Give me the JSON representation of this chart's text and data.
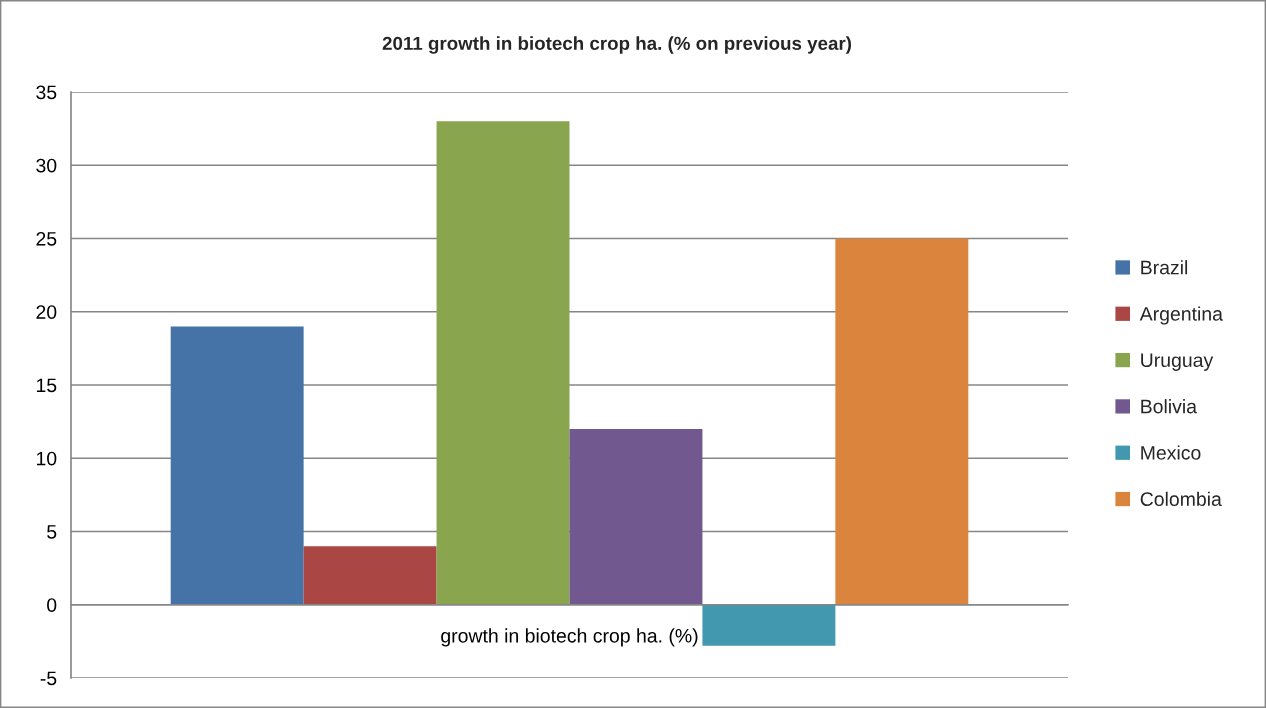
{
  "chart_data": {
    "type": "bar",
    "title": "2011 growth in biotech crop ha. (% on previous year)",
    "categories": [
      "growth in biotech crop ha. (%)"
    ],
    "series": [
      {
        "name": "Brazil",
        "color": "#4572a7",
        "values": [
          19
        ]
      },
      {
        "name": "Argentina",
        "color": "#aa4643",
        "values": [
          4
        ]
      },
      {
        "name": "Uruguay",
        "color": "#89a54e",
        "values": [
          33
        ]
      },
      {
        "name": "Bolivia",
        "color": "#71588f",
        "values": [
          12
        ]
      },
      {
        "name": "Mexico",
        "color": "#4198af",
        "values": [
          -2.8
        ]
      },
      {
        "name": "Colombia",
        "color": "#db843d",
        "values": [
          25
        ]
      }
    ],
    "ylim": [
      -5,
      35
    ],
    "yticks": [
      -5,
      0,
      5,
      10,
      15,
      20,
      25,
      30,
      35
    ],
    "grid": "y",
    "legend": "right"
  }
}
